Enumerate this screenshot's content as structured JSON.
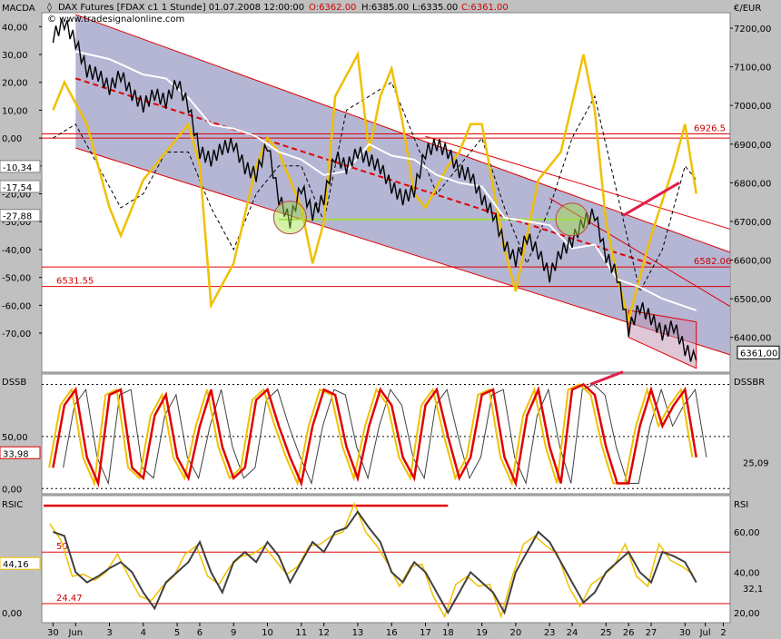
{
  "header": {
    "instrument": "DAX Futures [FDAX c1  1 Stunde] 01.07.2008 12:00:00",
    "open": "O:6362.00",
    "high": "H:6385.00",
    "low": "L:6335.00",
    "close": "C:6361.00",
    "watermark": "© www.tradesignalonline.com"
  },
  "colors": {
    "background": "#c0c0c0",
    "panel": "#ffffff",
    "channel_fill": "#a8a8cc",
    "price": "#000000",
    "white_line": "#ffffff",
    "yellow": "#f0c000",
    "red": "#e00000",
    "green": "#a0e040",
    "arrow": "#e0204a"
  },
  "chart_data": [
    {
      "type": "line",
      "panel": "main",
      "left_axis_label": "MACDA",
      "right_axis_label": "€/EUR",
      "left_ticks": [
        "40,00",
        "30,00",
        "20,00",
        "10,00",
        "0,00",
        "-10,00",
        "-20,00",
        "-30,00",
        "-40,00",
        "-50,00",
        "-60,00",
        "-70,00"
      ],
      "left_tick_values": [
        40,
        30,
        20,
        10,
        0,
        -10,
        -20,
        -30,
        -40,
        -50,
        -60,
        -70
      ],
      "left_ylim": [
        -84,
        45
      ],
      "right_ticks": [
        "7200,00",
        "7100,00",
        "7000,00",
        "6900,00",
        "6800,00",
        "6700,00",
        "6600,00",
        "6500,00",
        "6400,00"
      ],
      "right_tick_values": [
        7200,
        7100,
        7000,
        6900,
        6800,
        6700,
        6600,
        6500,
        6400
      ],
      "right_ylim": [
        6310,
        7240
      ],
      "left_value_labels": [
        {
          "text": "-10,34",
          "value": -10.34
        },
        {
          "text": "-17,54",
          "value": -17.54
        },
        {
          "text": "-27,88",
          "value": -27.88
        }
      ],
      "right_value_label": {
        "text": "6361,00",
        "value": 6361
      },
      "horizontal_levels": [
        {
          "label": "6926.5",
          "value": 6926.5
        },
        {
          "label": "6582.06",
          "value": 6582.06
        },
        {
          "label": "6531.55",
          "value": 6531.55
        }
      ],
      "price_path": [
        [
          0,
          7180
        ],
        [
          1,
          7215
        ],
        [
          2,
          7165
        ],
        [
          3,
          7090
        ],
        [
          4,
          7080
        ],
        [
          5,
          7045
        ],
        [
          6,
          7080
        ],
        [
          7,
          7030
        ],
        [
          8,
          7000
        ],
        [
          9,
          7030
        ],
        [
          10,
          7010
        ],
        [
          11,
          7060
        ],
        [
          12,
          7000
        ],
        [
          13,
          6880
        ],
        [
          14,
          6860
        ],
        [
          15,
          6890
        ],
        [
          16,
          6900
        ],
        [
          17,
          6840
        ],
        [
          18,
          6820
        ],
        [
          19,
          6900
        ],
        [
          20,
          6760
        ],
        [
          21,
          6700
        ],
        [
          22,
          6790
        ],
        [
          23,
          6720
        ],
        [
          24,
          6760
        ],
        [
          25,
          6870
        ],
        [
          26,
          6840
        ],
        [
          27,
          6880
        ],
        [
          28,
          6860
        ],
        [
          29,
          6840
        ],
        [
          30,
          6790
        ],
        [
          31,
          6760
        ],
        [
          32,
          6780
        ],
        [
          33,
          6880
        ],
        [
          34,
          6900
        ],
        [
          35,
          6880
        ],
        [
          36,
          6830
        ],
        [
          37,
          6820
        ],
        [
          38,
          6760
        ],
        [
          39,
          6720
        ],
        [
          40,
          6640
        ],
        [
          41,
          6600
        ],
        [
          42,
          6660
        ],
        [
          43,
          6620
        ],
        [
          44,
          6560
        ],
        [
          45,
          6620
        ],
        [
          46,
          6650
        ],
        [
          47,
          6700
        ],
        [
          48,
          6720
        ],
        [
          49,
          6610
        ],
        [
          50,
          6560
        ],
        [
          51,
          6420
        ],
        [
          52,
          6480
        ],
        [
          53,
          6450
        ],
        [
          54,
          6410
        ],
        [
          55,
          6430
        ],
        [
          56,
          6370
        ],
        [
          57,
          6340
        ]
      ],
      "white_line": [
        [
          0,
          7140
        ],
        [
          2,
          7140
        ],
        [
          5,
          7120
        ],
        [
          8,
          7080
        ],
        [
          10,
          7070
        ],
        [
          12,
          7020
        ],
        [
          14,
          6950
        ],
        [
          16,
          6940
        ],
        [
          18,
          6920
        ],
        [
          20,
          6880
        ],
        [
          22,
          6860
        ],
        [
          24,
          6820
        ],
        [
          26,
          6830
        ],
        [
          28,
          6900
        ],
        [
          30,
          6870
        ],
        [
          32,
          6860
        ],
        [
          34,
          6820
        ],
        [
          36,
          6800
        ],
        [
          38,
          6790
        ],
        [
          40,
          6710
        ],
        [
          42,
          6700
        ],
        [
          44,
          6690
        ],
        [
          46,
          6630
        ],
        [
          48,
          6640
        ],
        [
          50,
          6550
        ],
        [
          52,
          6530
        ],
        [
          54,
          6500
        ],
        [
          57,
          6470
        ]
      ],
      "macd_yellow": [
        [
          0,
          10
        ],
        [
          1,
          20
        ],
        [
          3,
          5
        ],
        [
          5,
          -25
        ],
        [
          6,
          -35
        ],
        [
          8,
          -15
        ],
        [
          10,
          -5
        ],
        [
          12,
          5
        ],
        [
          13,
          -10
        ],
        [
          14,
          -60
        ],
        [
          16,
          -45
        ],
        [
          18,
          -10
        ],
        [
          19,
          0
        ],
        [
          20,
          -5
        ],
        [
          22,
          -25
        ],
        [
          23,
          -45
        ],
        [
          24,
          -30
        ],
        [
          25,
          15
        ],
        [
          27,
          30
        ],
        [
          28,
          -5
        ],
        [
          29,
          15
        ],
        [
          30,
          25
        ],
        [
          31,
          5
        ],
        [
          32,
          -20
        ],
        [
          33,
          -25
        ],
        [
          35,
          -10
        ],
        [
          36,
          -5
        ],
        [
          37,
          5
        ],
        [
          38,
          5
        ],
        [
          40,
          -40
        ],
        [
          41,
          -55
        ],
        [
          43,
          -15
        ],
        [
          45,
          -5
        ],
        [
          47,
          30
        ],
        [
          48,
          10
        ],
        [
          49,
          -30
        ],
        [
          50,
          -50
        ],
        [
          51,
          -65
        ],
        [
          53,
          -35
        ],
        [
          55,
          -10
        ],
        [
          56,
          5
        ],
        [
          57,
          -20
        ]
      ],
      "signal_dashed": [
        [
          0,
          0
        ],
        [
          2,
          5
        ],
        [
          4,
          -10
        ],
        [
          6,
          -25
        ],
        [
          8,
          -20
        ],
        [
          10,
          -5
        ],
        [
          12,
          -5
        ],
        [
          14,
          -25
        ],
        [
          16,
          -40
        ],
        [
          18,
          -20
        ],
        [
          20,
          -10
        ],
        [
          22,
          -10
        ],
        [
          24,
          -30
        ],
        [
          26,
          10
        ],
        [
          28,
          15
        ],
        [
          30,
          20
        ],
        [
          32,
          0
        ],
        [
          34,
          -20
        ],
        [
          36,
          -10
        ],
        [
          38,
          0
        ],
        [
          40,
          -25
        ],
        [
          42,
          -45
        ],
        [
          44,
          -25
        ],
        [
          46,
          0
        ],
        [
          48,
          15
        ],
        [
          50,
          -20
        ],
        [
          52,
          -55
        ],
        [
          54,
          -40
        ],
        [
          56,
          -10
        ],
        [
          57,
          -15
        ]
      ],
      "annotation_circles": [
        {
          "x": 21,
          "value": 6710
        },
        {
          "x": 46,
          "value": 6705
        }
      ]
    },
    {
      "type": "line",
      "panel": "dss",
      "left_axis_label": "DSSB",
      "right_axis_label": "DSSBR",
      "ticks": [
        "50,00",
        "0,00"
      ],
      "tick_values": [
        50,
        0
      ],
      "ylim": [
        -5,
        110
      ],
      "left_value_label": {
        "text": "33,98",
        "value": 33.98
      },
      "right_value_label": {
        "text": "25,09",
        "value": 25.09
      },
      "red_line": [
        [
          0,
          20
        ],
        [
          1,
          80
        ],
        [
          2,
          95
        ],
        [
          3,
          30
        ],
        [
          4,
          5
        ],
        [
          5,
          90
        ],
        [
          6,
          95
        ],
        [
          7,
          20
        ],
        [
          8,
          10
        ],
        [
          9,
          70
        ],
        [
          10,
          90
        ],
        [
          11,
          30
        ],
        [
          12,
          10
        ],
        [
          13,
          60
        ],
        [
          14,
          95
        ],
        [
          15,
          40
        ],
        [
          16,
          10
        ],
        [
          17,
          20
        ],
        [
          18,
          85
        ],
        [
          19,
          95
        ],
        [
          20,
          60
        ],
        [
          21,
          30
        ],
        [
          22,
          5
        ],
        [
          23,
          60
        ],
        [
          24,
          95
        ],
        [
          25,
          90
        ],
        [
          26,
          40
        ],
        [
          27,
          10
        ],
        [
          28,
          60
        ],
        [
          29,
          95
        ],
        [
          30,
          80
        ],
        [
          31,
          30
        ],
        [
          32,
          10
        ],
        [
          33,
          80
        ],
        [
          34,
          95
        ],
        [
          35,
          50
        ],
        [
          36,
          10
        ],
        [
          37,
          30
        ],
        [
          38,
          90
        ],
        [
          39,
          95
        ],
        [
          40,
          30
        ],
        [
          41,
          5
        ],
        [
          42,
          70
        ],
        [
          43,
          95
        ],
        [
          44,
          40
        ],
        [
          45,
          5
        ],
        [
          46,
          95
        ],
        [
          47,
          100
        ],
        [
          48,
          90
        ],
        [
          49,
          40
        ],
        [
          50,
          5
        ],
        [
          51,
          5
        ],
        [
          52,
          60
        ],
        [
          53,
          95
        ],
        [
          54,
          60
        ],
        [
          55,
          80
        ],
        [
          56,
          95
        ],
        [
          57,
          30
        ]
      ]
    },
    {
      "type": "line",
      "panel": "rsi",
      "left_axis_label": "RSIC",
      "right_axis_label": "RSI",
      "left_ticks": [
        "50",
        "24.47",
        "0,00"
      ],
      "left_value_label": {
        "text": "44,16",
        "value": 44.16
      },
      "right_ticks": [
        "60,00",
        "40,00",
        "20,00"
      ],
      "right_tick_values": [
        60,
        40,
        20
      ],
      "right_ylim": [
        15,
        78
      ],
      "right_value_label": {
        "text": "32,1",
        "value": 32.1
      },
      "levels": [
        {
          "label": "50",
          "value": 50
        },
        {
          "label": "24.47",
          "value": 24.47
        }
      ],
      "rsi_gray": [
        [
          0,
          60
        ],
        [
          1,
          58
        ],
        [
          2,
          40
        ],
        [
          3,
          35
        ],
        [
          4,
          38
        ],
        [
          5,
          42
        ],
        [
          6,
          45
        ],
        [
          7,
          40
        ],
        [
          8,
          30
        ],
        [
          9,
          22
        ],
        [
          10,
          35
        ],
        [
          11,
          40
        ],
        [
          12,
          45
        ],
        [
          13,
          55
        ],
        [
          14,
          40
        ],
        [
          15,
          30
        ],
        [
          16,
          45
        ],
        [
          17,
          50
        ],
        [
          18,
          45
        ],
        [
          19,
          55
        ],
        [
          20,
          48
        ],
        [
          21,
          35
        ],
        [
          22,
          45
        ],
        [
          23,
          55
        ],
        [
          24,
          50
        ],
        [
          25,
          60
        ],
        [
          26,
          62
        ],
        [
          27,
          70
        ],
        [
          28,
          62
        ],
        [
          29,
          55
        ],
        [
          30,
          40
        ],
        [
          31,
          35
        ],
        [
          32,
          45
        ],
        [
          33,
          40
        ],
        [
          34,
          30
        ],
        [
          35,
          20
        ],
        [
          36,
          30
        ],
        [
          37,
          40
        ],
        [
          38,
          35
        ],
        [
          39,
          30
        ],
        [
          40,
          20
        ],
        [
          41,
          40
        ],
        [
          42,
          50
        ],
        [
          43,
          60
        ],
        [
          44,
          55
        ],
        [
          45,
          45
        ],
        [
          46,
          35
        ],
        [
          47,
          25
        ],
        [
          48,
          30
        ],
        [
          49,
          40
        ],
        [
          50,
          45
        ],
        [
          51,
          50
        ],
        [
          52,
          40
        ],
        [
          53,
          35
        ],
        [
          54,
          50
        ],
        [
          55,
          48
        ],
        [
          56,
          45
        ],
        [
          57,
          35
        ]
      ]
    }
  ],
  "x_axis": {
    "labels": [
      "30",
      "Jun",
      "3",
      "4",
      "5",
      "6",
      "9",
      "10",
      "11",
      "12",
      "13",
      "16",
      "17",
      "18",
      "19",
      "20",
      "23",
      "24",
      "25",
      "26",
      "27",
      "30",
      "Jul",
      "2"
    ],
    "positions": [
      0,
      2,
      5,
      8,
      11,
      13,
      16,
      19,
      22,
      24,
      27,
      30,
      33,
      35,
      38,
      41,
      44,
      46,
      49,
      51,
      53,
      56,
      57.8,
      59.4
    ],
    "xlim": [
      -1,
      60
    ]
  }
}
